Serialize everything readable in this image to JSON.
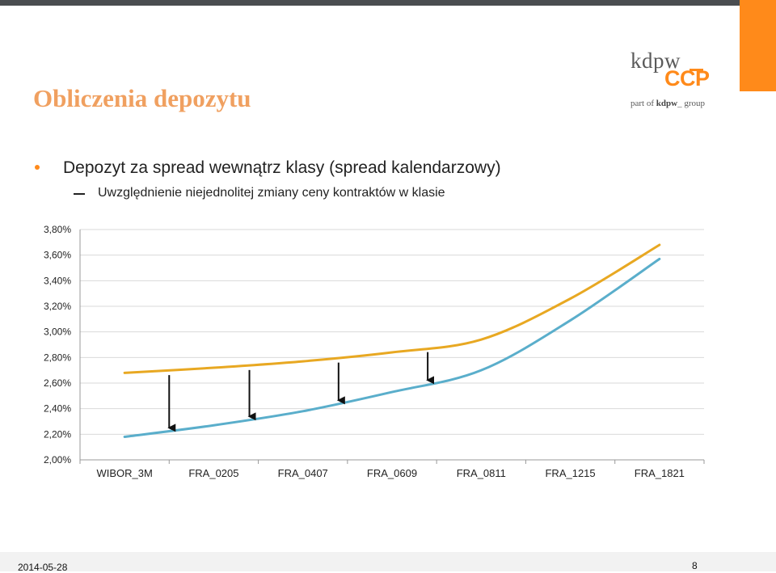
{
  "slide": {
    "title": "Obliczenia depozytu",
    "bullet1": "Depozyt za spread wewnątrz klasy (spread kalendarzowy)",
    "bullet2": "Uwzględnienie niejednolitej zmiany ceny kontraktów w klasie",
    "date": "2014-05-28",
    "page": "8"
  },
  "logo": {
    "line1": "kdpw",
    "line2": "CCP",
    "line3_prefix": "part of ",
    "line3_brand": "kdpw",
    "line3_suffix": "_ group"
  },
  "colors": {
    "accent": "#ff8a1a",
    "title": "#f0a060",
    "series_upper": "#e8a822",
    "series_lower": "#5aaecb"
  },
  "chart_data": {
    "type": "line",
    "categories": [
      "WIBOR_3M",
      "FRA_0205",
      "FRA_0407",
      "FRA_0609",
      "FRA_0811",
      "FRA_1215",
      "FRA_1821"
    ],
    "ylim": [
      0.02,
      0.038
    ],
    "yticks": [
      "2,00%",
      "2,20%",
      "2,40%",
      "2,60%",
      "2,80%",
      "3,00%",
      "3,20%",
      "3,40%",
      "3,60%",
      "3,80%"
    ],
    "grid": true,
    "series": [
      {
        "values": [
          0.0268,
          0.0272,
          0.0277,
          0.0284,
          0.0294,
          0.0326,
          0.0368
        ]
      },
      {
        "values": [
          0.0218,
          0.0227,
          0.0238,
          0.0253,
          0.027,
          0.0309,
          0.0357
        ]
      }
    ],
    "arrows": [
      0.5,
      1.4,
      2.4,
      3.4
    ]
  }
}
